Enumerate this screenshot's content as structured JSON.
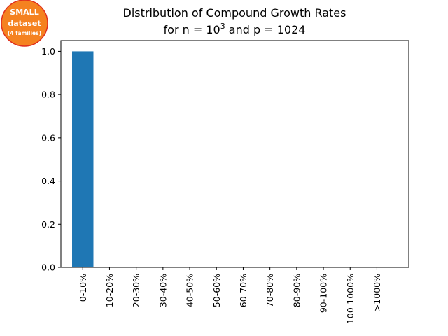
{
  "badge": {
    "line1": "SMALL",
    "line2": "dataset",
    "line3": "(4 families)",
    "fill_color": "#f58220",
    "ring_color": "#e0301e",
    "text_color": "#ffffff"
  },
  "chart_data": {
    "type": "bar",
    "title_line1": "Distribution of Compound Growth Rates",
    "title_line2_prefix": "for n = 10",
    "title_line2_sup": "3",
    "title_line2_suffix": " and p = 1024",
    "xlabel": "",
    "ylabel": "",
    "categories": [
      "0-10%",
      "10-20%",
      "20-30%",
      "30-40%",
      "40-50%",
      "50-60%",
      "60-70%",
      "70-80%",
      "80-90%",
      "90-100%",
      "100-1000%",
      ">1000%"
    ],
    "values": [
      1.0,
      0,
      0,
      0,
      0,
      0,
      0,
      0,
      0,
      0,
      0,
      0
    ],
    "ylim": [
      0,
      1.05
    ],
    "yticks": [
      0.0,
      0.2,
      0.4,
      0.6,
      0.8,
      1.0
    ],
    "ytick_labels": [
      "0.0",
      "0.2",
      "0.4",
      "0.6",
      "0.8",
      "1.0"
    ],
    "bar_color": "#1f77b4",
    "grid": false,
    "legend": "none"
  }
}
